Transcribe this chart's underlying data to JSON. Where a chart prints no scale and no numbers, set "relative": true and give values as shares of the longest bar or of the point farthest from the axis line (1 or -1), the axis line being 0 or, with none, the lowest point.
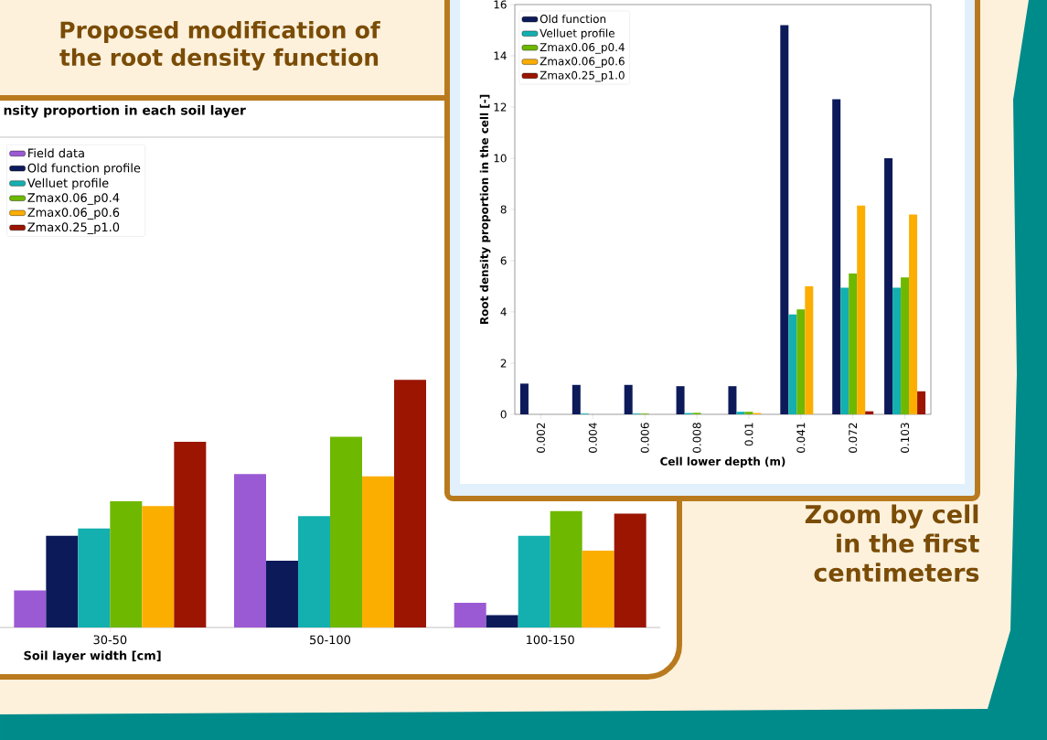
{
  "chart_data": [
    {
      "type": "bar",
      "title": "nsity proportion in each soil layer",
      "xlabel": "Soil layer width [cm]",
      "relative": true,
      "legend": "top left",
      "categories": [
        "30-50",
        "50-100",
        "100-150"
      ],
      "series": [
        {
          "name": "Field data",
          "color": "#9a5ad4",
          "values": [
            0.15,
            0.62,
            0.1
          ]
        },
        {
          "name": "Old function profile",
          "color": "#0d1a5a",
          "values": [
            0.37,
            0.27,
            0.05
          ]
        },
        {
          "name": "Velluet profile",
          "color": "#14afaf",
          "values": [
            0.4,
            0.45,
            0.37
          ]
        },
        {
          "name": "Zmax0.06_p0.4",
          "color": "#6eb800",
          "values": [
            0.51,
            0.77,
            0.47
          ]
        },
        {
          "name": "Zmax0.06_p0.6",
          "color": "#fcae00",
          "values": [
            0.49,
            0.61,
            0.31
          ]
        },
        {
          "name": "Zmax0.25_p1.0",
          "color": "#9b1500",
          "values": [
            0.75,
            1.0,
            0.46
          ]
        }
      ],
      "annotations": [
        "Proposed modification of the root density function"
      ]
    },
    {
      "type": "bar",
      "xlabel": "Cell lower depth (m)",
      "ylabel": "Root density proportion in the cell [-]",
      "legend": "top left",
      "categories": [
        "0.002",
        "0.004",
        "0.006",
        "0.008",
        "0.01",
        "0.041",
        "0.072",
        "0.103"
      ],
      "ylim": [
        0,
        16
      ],
      "yticks": [
        0,
        2,
        4,
        6,
        8,
        10,
        12,
        14,
        16
      ],
      "series": [
        {
          "name": "Old function",
          "color": "#0d1a5a",
          "values": [
            1.2,
            1.15,
            1.15,
            1.1,
            1.1,
            15.2,
            12.3,
            10.0
          ]
        },
        {
          "name": "Velluet profile",
          "color": "#14afaf",
          "values": [
            0,
            0.03,
            0.03,
            0.05,
            0.1,
            3.9,
            4.95,
            4.95
          ]
        },
        {
          "name": "Zmax0.06_p0.4",
          "color": "#6eb800",
          "values": [
            0,
            0,
            0.03,
            0.06,
            0.1,
            4.1,
            5.5,
            5.35
          ]
        },
        {
          "name": "Zmax0.06_p0.6",
          "color": "#fcae00",
          "values": [
            0,
            0,
            0,
            0,
            0.05,
            5.0,
            8.15,
            7.8
          ]
        },
        {
          "name": "Zmax0.25_p1.0",
          "color": "#9b1500",
          "values": [
            0,
            0,
            0,
            0,
            0,
            0,
            0.12,
            0.9
          ]
        }
      ],
      "annotations": [
        "Zoom by cell in the first centimeters"
      ]
    }
  ]
}
